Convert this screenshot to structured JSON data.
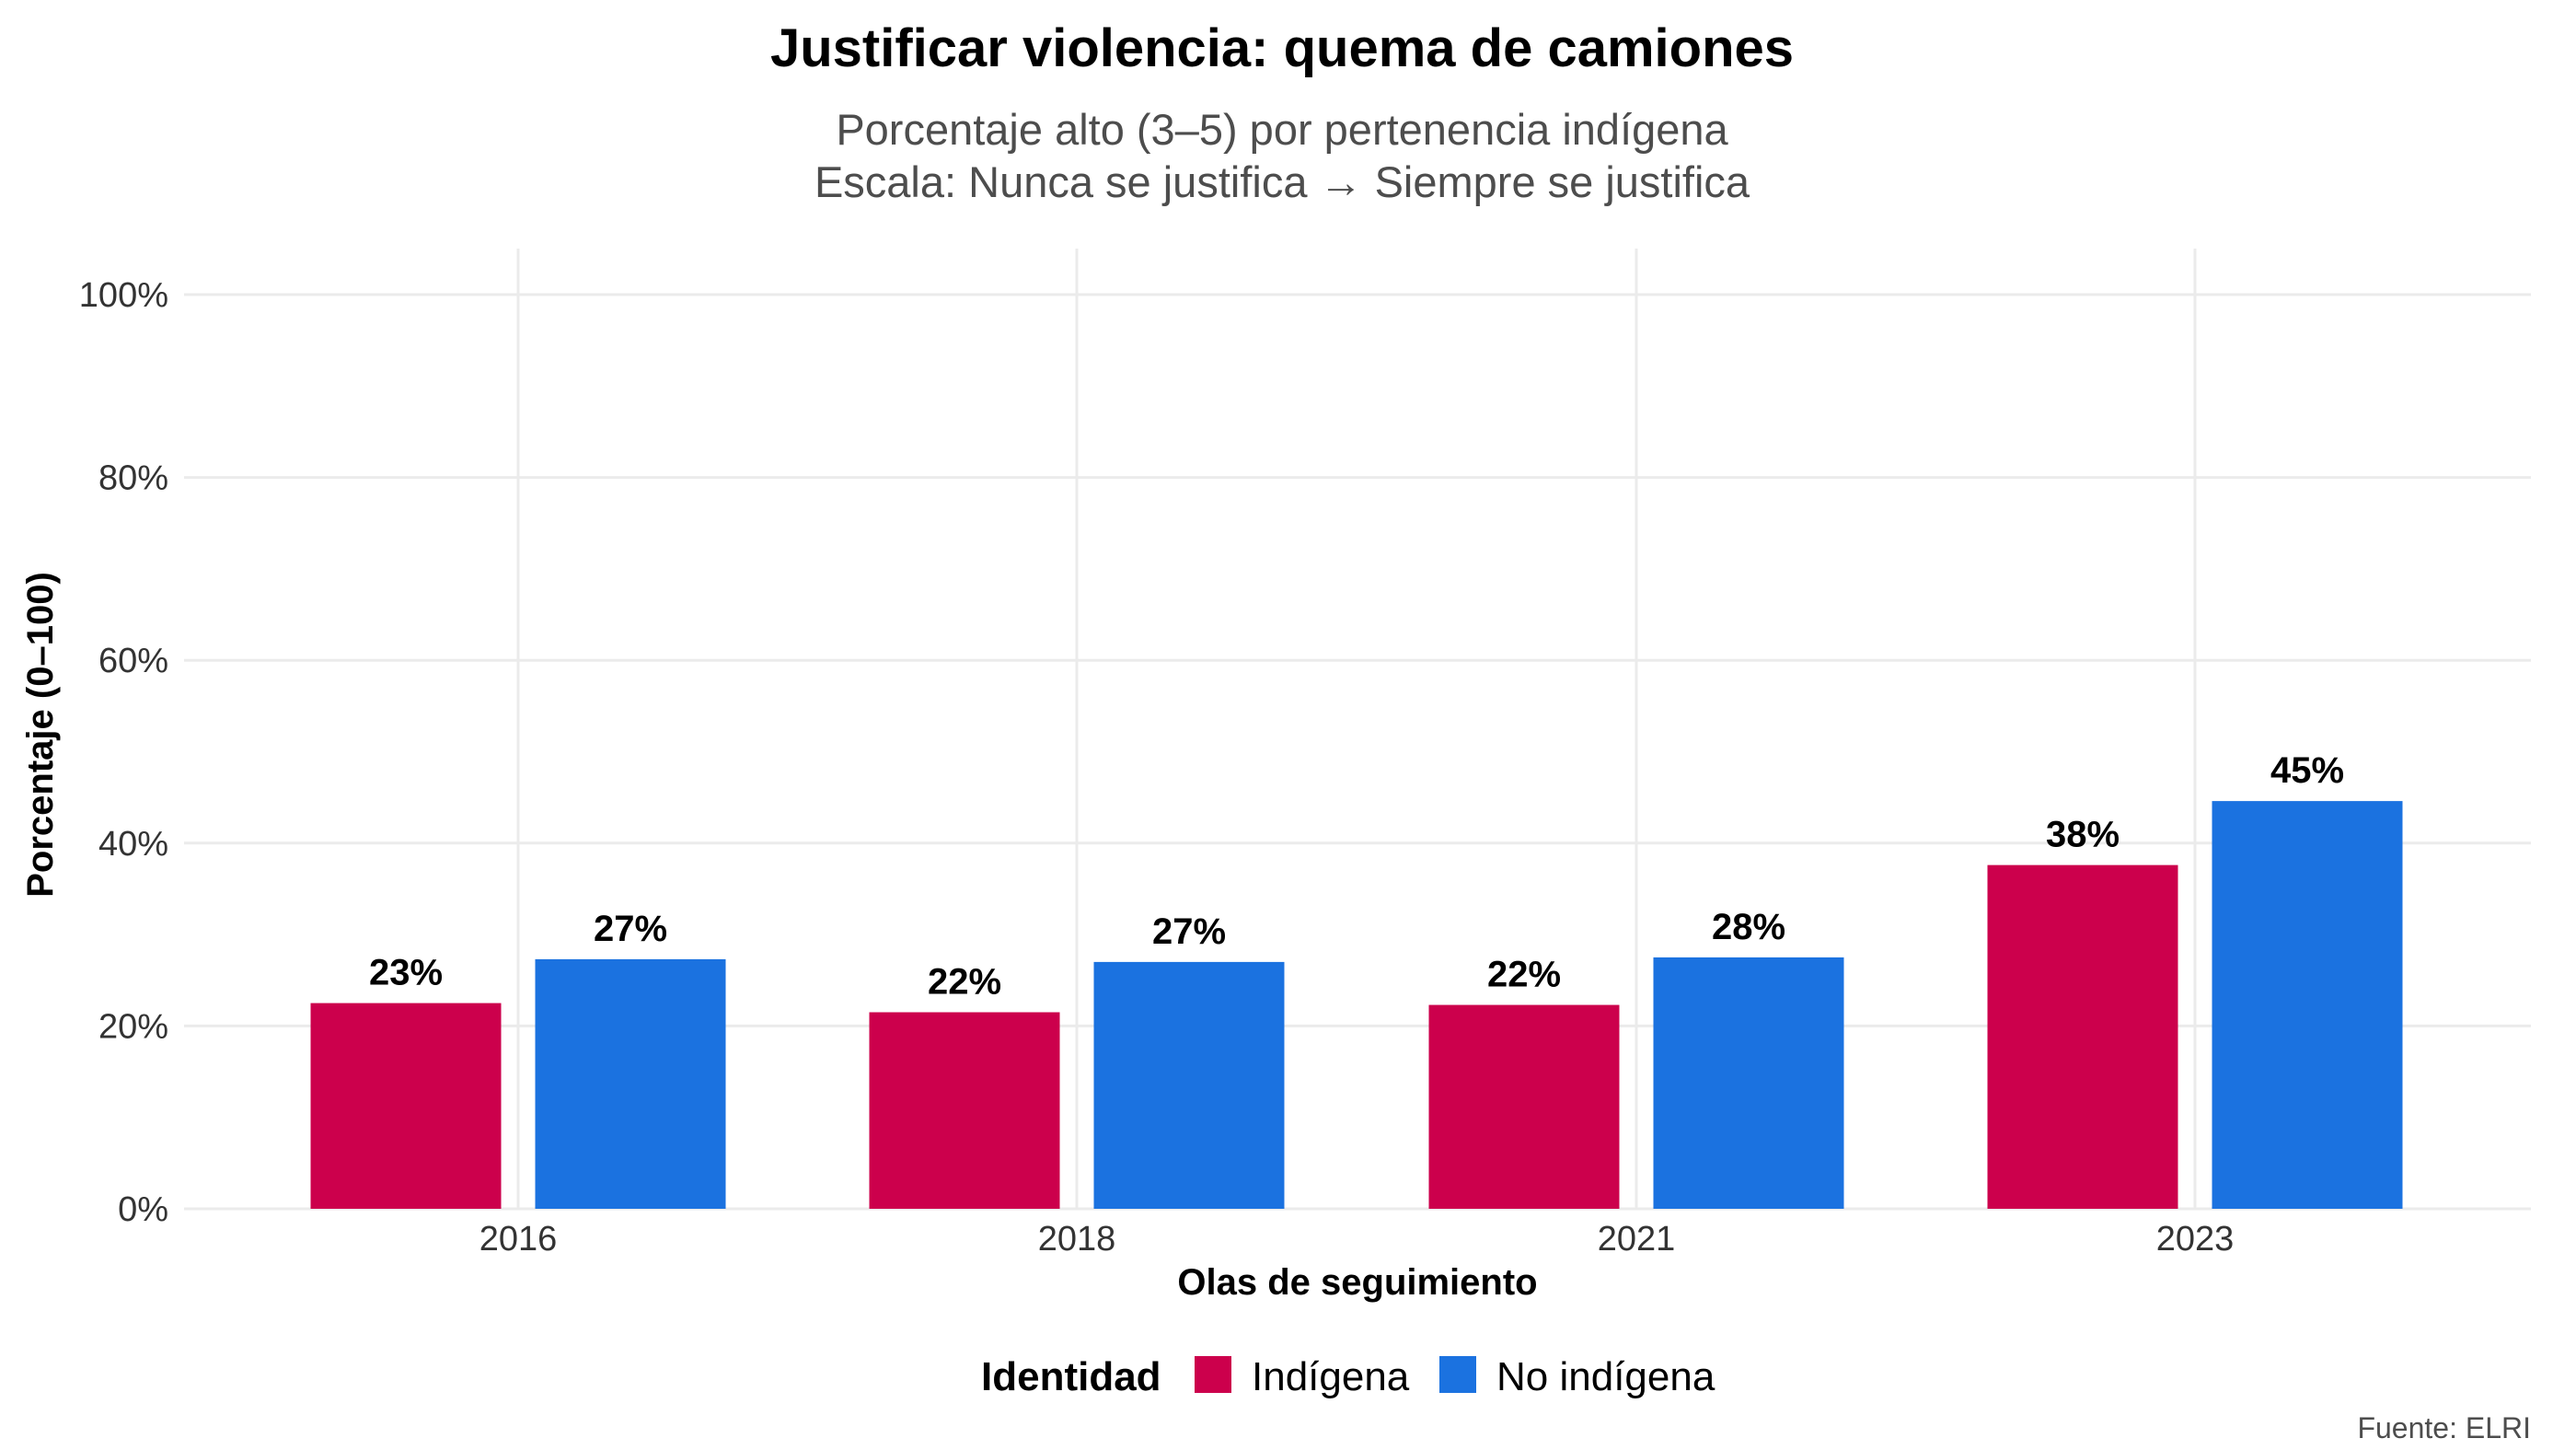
{
  "chart_data": {
    "type": "bar",
    "title": "Justificar violencia: quema de camiones",
    "subtitle_lines": [
      "Porcentaje alto (3–5) por pertenencia indígena",
      "Escala: Nunca se justifica → Siempre se justifica"
    ],
    "xlabel": "Olas de seguimiento",
    "ylabel": "Porcentaje (0–100)",
    "categories": [
      "2016",
      "2018",
      "2021",
      "2023"
    ],
    "ylim": [
      0,
      100
    ],
    "yticks": [
      0,
      20,
      40,
      60,
      80,
      100
    ],
    "ytick_labels": [
      "0%",
      "20%",
      "40%",
      "60%",
      "80%",
      "100%"
    ],
    "grid": true,
    "legend_position": "bottom",
    "legend_title": "Identidad",
    "series": [
      {
        "name": "Indígena",
        "color": "#CC004C",
        "values": [
          22.5,
          21.5,
          22.3,
          37.6
        ],
        "labels": [
          "23%",
          "22%",
          "22%",
          "38%"
        ]
      },
      {
        "name": "No indígena",
        "color": "#1B72E0",
        "values": [
          27.3,
          27.0,
          27.5,
          44.6
        ],
        "labels": [
          "27%",
          "27%",
          "28%",
          "45%"
        ]
      }
    ],
    "caption": "Fuente: ELRI"
  }
}
